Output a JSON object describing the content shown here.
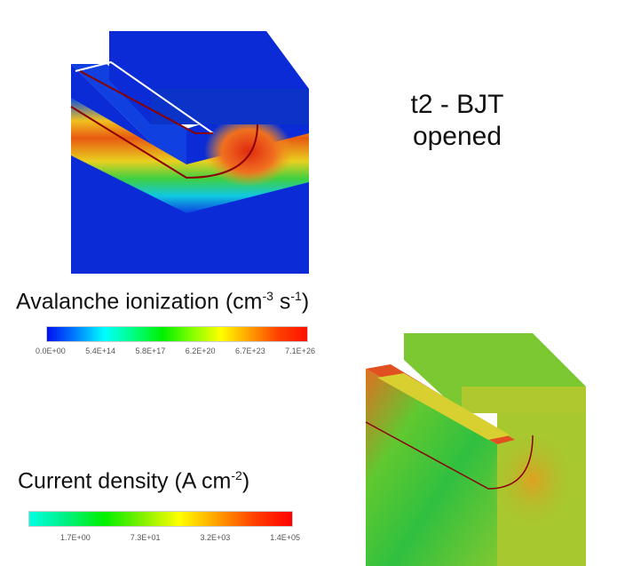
{
  "title": {
    "line1": "t2 - BJT",
    "line2": "opened"
  },
  "avalanche": {
    "label": "Avalanche ionization (cm",
    "exp1": "-3",
    "mid": " s",
    "exp2": "-1",
    "end": ")",
    "ticks": [
      "0.0E+00",
      "5.4E+14",
      "5.8E+17",
      "6.2E+20",
      "6.7E+23",
      "7.1E+26"
    ]
  },
  "current": {
    "label": "Current density (A cm",
    "exp": "-2",
    "end": ")",
    "ticks": [
      "1.7E+00",
      "7.3E+01",
      "3.2E+03",
      "1.4E+05"
    ]
  },
  "colors": {
    "blue": "#0a2bd6",
    "red": "#e62a10",
    "green": "#3ed13a",
    "yellow": "#e6e82a"
  }
}
